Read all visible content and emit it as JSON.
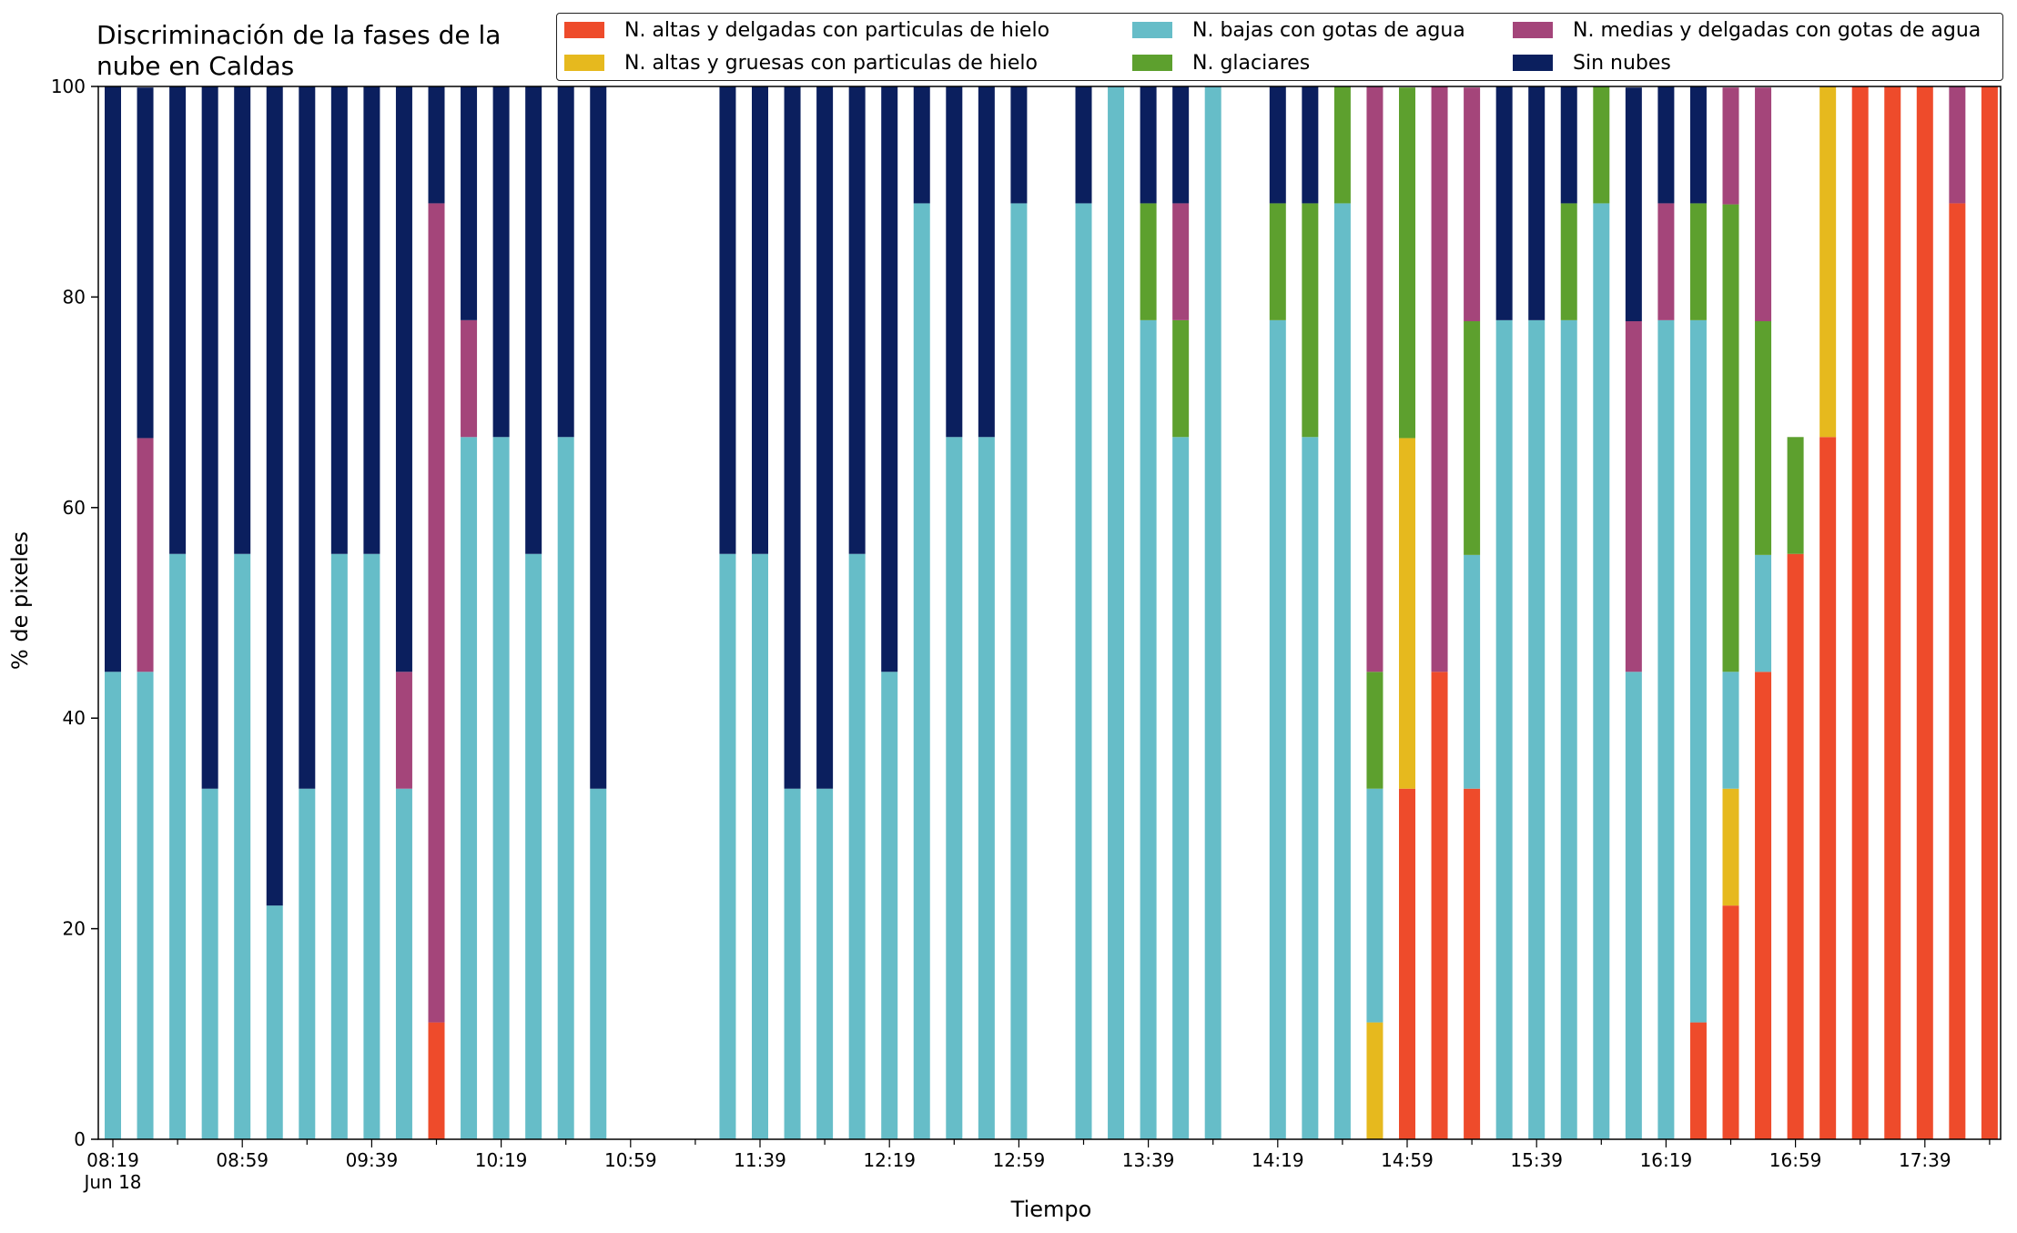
{
  "chart_data": {
    "type": "bar",
    "stacked": true,
    "title_lines": [
      "Discriminación de la fases de la",
      "nube en Caldas"
    ],
    "xlabel": "Tiempo",
    "ylabel": "% de pixeles",
    "ylim": [
      0,
      100
    ],
    "yticks": [
      0,
      20,
      40,
      60,
      80,
      100
    ],
    "xtick_labels": [
      "08:19",
      "08:59",
      "09:39",
      "10:19",
      "10:59",
      "11:39",
      "12:19",
      "12:59",
      "13:39",
      "14:19",
      "14:59",
      "15:39",
      "16:19",
      "16:59",
      "17:39"
    ],
    "xtick_sublabel": "Jun 18",
    "x_start": "08:19",
    "x_interval_minutes": 10,
    "legend_position": "top-right",
    "series": [
      {
        "name": "N. altas y delgadas con particulas de hielo",
        "color": "#ee4b2b",
        "values": [
          0,
          0,
          0,
          0,
          0,
          0,
          0,
          0,
          0,
          0,
          11.1,
          0,
          0,
          0,
          0,
          0,
          null,
          null,
          null,
          0,
          0,
          0,
          0,
          0,
          0,
          0,
          0,
          0,
          0,
          null,
          0,
          0,
          0,
          0,
          0,
          null,
          0,
          0,
          0,
          0,
          33.3,
          44.4,
          33.3,
          0,
          0,
          0,
          0,
          0,
          0,
          11.1,
          22.2,
          44.4,
          55.6,
          66.7,
          100,
          100,
          100,
          88.9,
          100
        ]
      },
      {
        "name": "N. altas y gruesas con particulas de hielo",
        "color": "#e6b91e",
        "values": [
          0,
          0,
          0,
          0,
          0,
          0,
          0,
          0,
          0,
          0,
          0,
          0,
          0,
          0,
          0,
          0,
          null,
          null,
          null,
          0,
          0,
          0,
          0,
          0,
          0,
          0,
          0,
          0,
          0,
          null,
          0,
          0,
          0,
          0,
          0,
          null,
          0,
          0,
          0,
          11.1,
          33.3,
          0,
          0,
          0,
          0,
          0,
          0,
          0,
          0,
          0,
          11.1,
          0,
          0,
          33.3,
          0,
          0,
          0,
          0,
          0
        ]
      },
      {
        "name": "N. bajas con gotas de agua",
        "color": "#66bdc8",
        "values": [
          44.4,
          44.4,
          55.6,
          33.3,
          55.6,
          22.2,
          33.3,
          55.6,
          55.6,
          33.3,
          0,
          66.7,
          66.7,
          55.6,
          66.7,
          33.3,
          null,
          null,
          null,
          55.6,
          55.6,
          33.3,
          33.3,
          55.6,
          44.4,
          88.9,
          66.7,
          66.7,
          88.9,
          null,
          88.9,
          100,
          77.8,
          66.7,
          100,
          null,
          77.8,
          66.7,
          88.9,
          22.2,
          0,
          0,
          22.2,
          77.8,
          77.8,
          77.8,
          88.9,
          44.4,
          77.8,
          66.7,
          11.1,
          11.1,
          0,
          0,
          0,
          0,
          0,
          0,
          0
        ]
      },
      {
        "name": "N. glaciares",
        "color": "#5da02e",
        "values": [
          0,
          0,
          0,
          0,
          0,
          0,
          0,
          0,
          0,
          0,
          0,
          0,
          0,
          0,
          0,
          0,
          null,
          null,
          null,
          0,
          0,
          0,
          0,
          0,
          0,
          0,
          0,
          0,
          0,
          null,
          0,
          0,
          11.1,
          11.1,
          0,
          null,
          11.1,
          22.2,
          11.1,
          11.1,
          33.3,
          0,
          22.2,
          0,
          0,
          11.1,
          11.1,
          0,
          0,
          11.1,
          44.4,
          22.2,
          11.1,
          0,
          0,
          0,
          0,
          0,
          0
        ]
      },
      {
        "name": "N. medias y delgadas con gotas de agua",
        "color": "#a4457a",
        "values": [
          0,
          22.2,
          0,
          0,
          0,
          0,
          0,
          0,
          0,
          11.1,
          77.8,
          11.1,
          0,
          0,
          0,
          0,
          null,
          null,
          null,
          0,
          0,
          0,
          0,
          0,
          0,
          0,
          0,
          0,
          0,
          null,
          0,
          0,
          0,
          11.1,
          0,
          null,
          0,
          0,
          0,
          55.6,
          0,
          55.6,
          22.2,
          0,
          0,
          0,
          0,
          33.3,
          11.1,
          0,
          11.1,
          22.2,
          0,
          0,
          0,
          0,
          0,
          11.1,
          0
        ]
      },
      {
        "name": "Sin nubes",
        "color": "#0b1f5e",
        "values": [
          55.6,
          33.3,
          44.4,
          66.7,
          44.4,
          77.8,
          66.7,
          44.4,
          44.4,
          55.6,
          11.1,
          22.2,
          33.3,
          44.4,
          33.3,
          66.7,
          null,
          null,
          null,
          44.4,
          44.4,
          66.7,
          66.7,
          44.4,
          55.6,
          11.1,
          33.3,
          33.3,
          11.1,
          null,
          11.1,
          0,
          11.1,
          11.1,
          0,
          null,
          11.1,
          11.1,
          0,
          0,
          0,
          0,
          0,
          22.2,
          22.2,
          11.1,
          0,
          22.2,
          11.1,
          11.1,
          0,
          0,
          0,
          0,
          0,
          0,
          0,
          0,
          0
        ]
      }
    ]
  }
}
